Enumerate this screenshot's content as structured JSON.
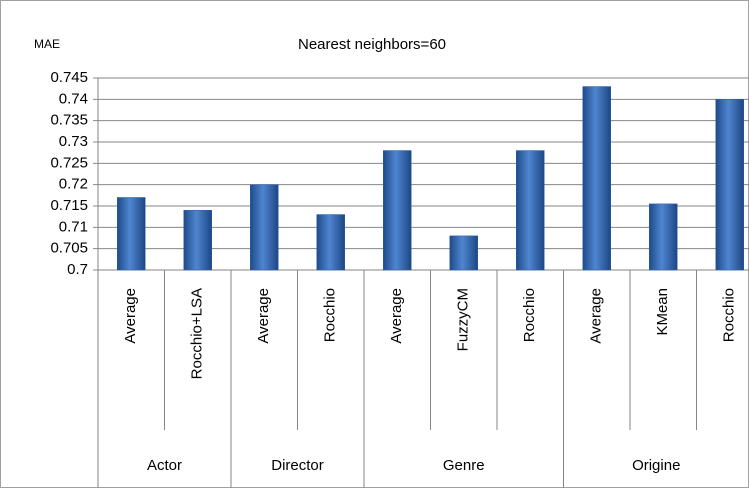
{
  "chart_data": {
    "type": "bar",
    "title": "Nearest neighbors=60",
    "ylabel": "MAE",
    "groups": [
      {
        "name": "Actor",
        "categories": [
          "Average",
          "Rocchio+LSA"
        ]
      },
      {
        "name": "Director",
        "categories": [
          "Average",
          "Rocchio"
        ]
      },
      {
        "name": "Genre",
        "categories": [
          "Average",
          "FuzzyCM",
          "Rocchio"
        ]
      },
      {
        "name": "Origine",
        "categories": [
          "Average",
          "KMean",
          "Rocchio"
        ]
      }
    ],
    "values": [
      0.717,
      0.714,
      0.72,
      0.713,
      0.728,
      0.708,
      0.728,
      0.743,
      0.7155,
      0.74
    ],
    "color": "#2e5fa8",
    "ylim": [
      0.7,
      0.745
    ],
    "yticks": [
      0.7,
      0.705,
      0.71,
      0.715,
      0.72,
      0.725,
      0.73,
      0.735,
      0.74,
      0.745
    ],
    "grid": true
  }
}
